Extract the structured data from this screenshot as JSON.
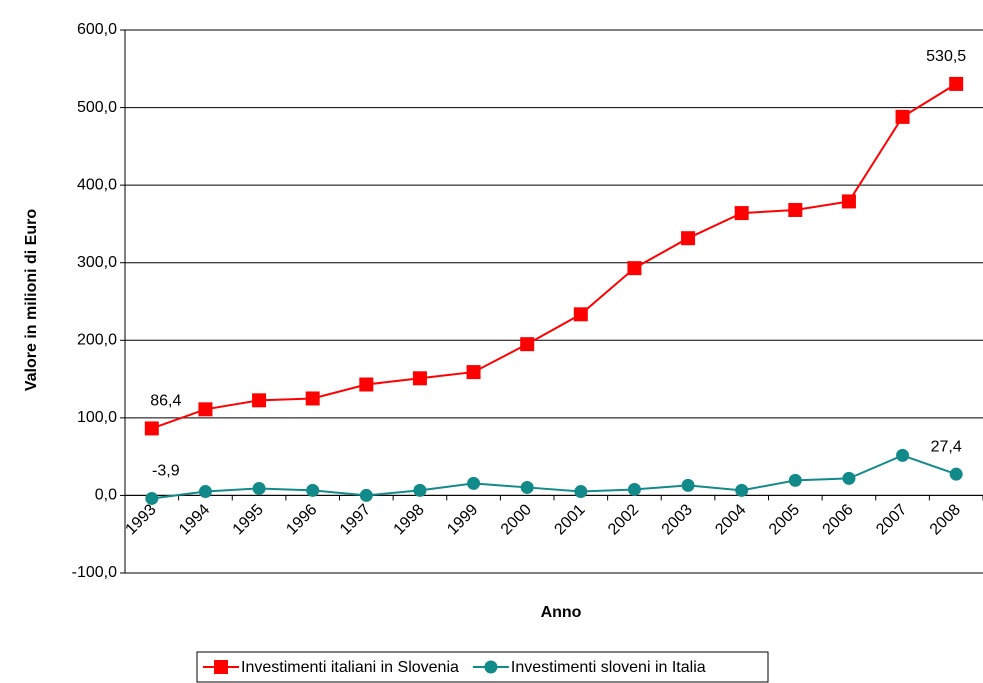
{
  "chart_data": {
    "type": "line",
    "x_label": "Anno",
    "y_label": "Valore in milioni di Euro",
    "categories": [
      "1993",
      "1994",
      "1995",
      "1996",
      "1997",
      "1998",
      "1999",
      "2000",
      "2001",
      "2002",
      "2003",
      "2004",
      "2005",
      "2006",
      "2007",
      "2008"
    ],
    "series": [
      {
        "name": "Investimenti italiani in Slovenia",
        "color": "#ff0000",
        "marker": "square",
        "values": [
          86.4,
          111,
          122.6,
          125,
          143,
          151,
          159,
          195,
          233.5,
          293,
          331.6,
          364,
          368,
          379,
          488,
          530.5
        ],
        "value_labels": [
          "86,4",
          null,
          null,
          null,
          null,
          null,
          null,
          null,
          null,
          null,
          null,
          null,
          null,
          null,
          null,
          "530,5"
        ]
      },
      {
        "name": "Investimenti sloveni in Italia",
        "color": "#138a8a",
        "marker": "circle",
        "values": [
          -3.9,
          5,
          9,
          6.5,
          0,
          6.5,
          15.5,
          10.3,
          5,
          7.7,
          13,
          6.5,
          19.4,
          22,
          51.6,
          27.4
        ],
        "value_labels": [
          "-3,9",
          null,
          null,
          null,
          null,
          null,
          null,
          null,
          null,
          null,
          null,
          null,
          null,
          null,
          null,
          "27,4"
        ]
      }
    ],
    "ylim": [
      -100,
      600
    ],
    "yticks": [
      {
        "value": -100,
        "label": "-100,0"
      },
      {
        "value": 0,
        "label": "0,0"
      },
      {
        "value": 100,
        "label": "100,0"
      },
      {
        "value": 200,
        "label": "200,0"
      },
      {
        "value": 300,
        "label": "300,0"
      },
      {
        "value": 400,
        "label": "400,0"
      },
      {
        "value": 500,
        "label": "500,0"
      },
      {
        "value": 600,
        "label": "600,0"
      }
    ],
    "grid": true,
    "legend": "bottom"
  }
}
